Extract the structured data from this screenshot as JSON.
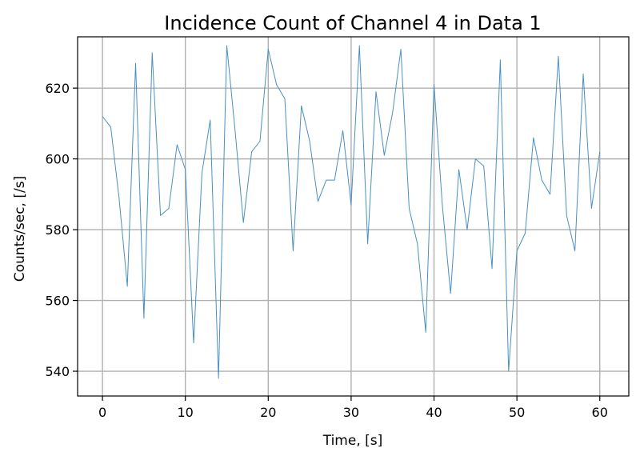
{
  "chart_data": {
    "type": "line",
    "title": "Incidence Count of Channel 4 in Data 1",
    "xlabel": "Time, [s]",
    "ylabel": "Counts/sec, [/s]",
    "xlim": [
      -3,
      63.5
    ],
    "ylim": [
      533,
      634.5
    ],
    "xticks": [
      0,
      10,
      20,
      30,
      40,
      50,
      60
    ],
    "yticks": [
      540,
      560,
      580,
      600,
      620
    ],
    "grid": true,
    "series": [
      {
        "color": "#4a90c2",
        "x": [
          0,
          1,
          2,
          3,
          4,
          5,
          6,
          7,
          8,
          9,
          10,
          11,
          12,
          13,
          14,
          15,
          16,
          17,
          18,
          19,
          20,
          21,
          22,
          23,
          24,
          25,
          26,
          27,
          28,
          29,
          30,
          31,
          32,
          33,
          34,
          35,
          36,
          37,
          38,
          39,
          40,
          41,
          42,
          43,
          44,
          45,
          46,
          47,
          48,
          49,
          50,
          51,
          52,
          53,
          54,
          55,
          56,
          57,
          58,
          59,
          60
        ],
        "y": [
          612,
          609,
          589,
          564,
          627,
          555,
          630,
          584,
          586,
          604,
          597,
          548,
          596,
          611,
          538,
          632,
          608,
          582,
          602,
          605,
          631,
          621,
          617,
          574,
          615,
          605,
          588,
          594,
          594,
          608,
          587,
          632,
          576,
          619,
          601,
          613,
          631,
          586,
          576,
          551,
          621,
          587,
          562,
          597,
          580,
          600,
          598,
          569,
          628,
          540,
          574,
          579,
          606,
          594,
          590,
          629,
          584,
          574,
          624,
          586,
          602
        ]
      }
    ]
  }
}
